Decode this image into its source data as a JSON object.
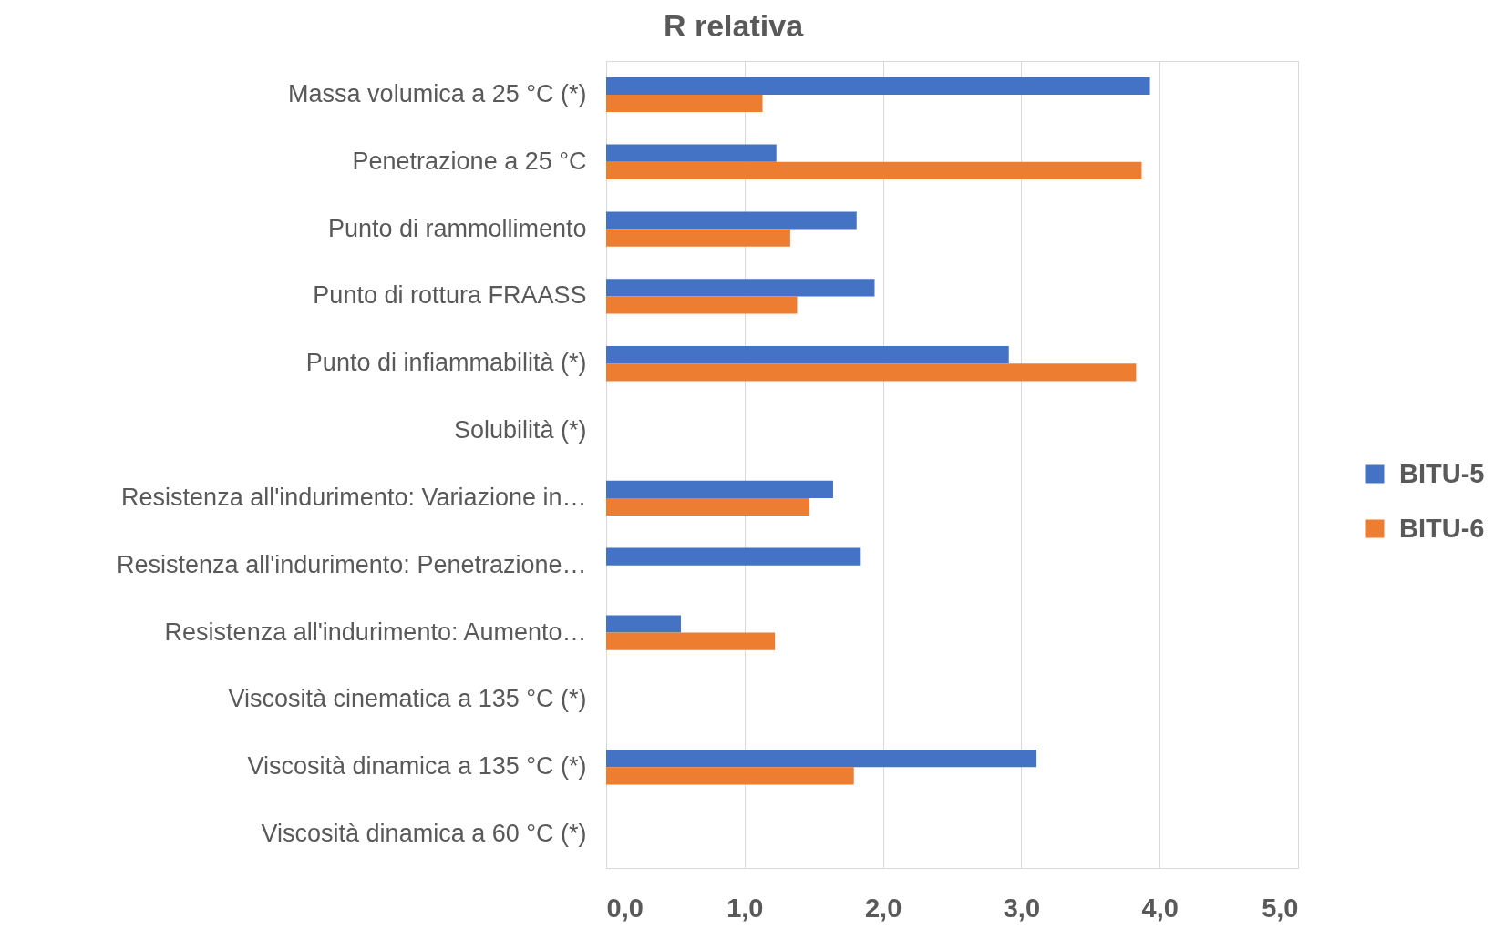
{
  "chart_data": {
    "type": "bar",
    "orientation": "horizontal",
    "title": "R relativa",
    "categories": [
      "Massa volumica a 25 °C  (*)",
      "Penetrazione a 25 °C",
      "Punto di rammollimento",
      "Punto di rottura FRAASS",
      "Punto di infiammabilità (*)",
      "Solubilità (*)",
      "Resistenza all'indurimento: Variazione in…",
      "Resistenza all'indurimento: Penetrazione…",
      "Resistenza all'indurimento: Aumento…",
      "Viscosità cinematica a 135 °C (*)",
      "Viscosità dinamica a 135 °C (*)",
      "Viscosità dinamica a 60 °C (*)"
    ],
    "series": [
      {
        "name": "BITU-5",
        "color": "#4472c4",
        "values": [
          3.93,
          1.23,
          1.81,
          1.94,
          2.91,
          null,
          1.64,
          1.84,
          0.54,
          null,
          3.11,
          null
        ]
      },
      {
        "name": "BITU-6",
        "color": "#ed7d31",
        "values": [
          1.13,
          3.87,
          1.33,
          1.38,
          3.83,
          null,
          1.47,
          null,
          1.22,
          null,
          1.79,
          null
        ]
      }
    ],
    "xlim": [
      0,
      5
    ],
    "xticks": [
      {
        "value": 0,
        "label": "0,0"
      },
      {
        "value": 1,
        "label": "1,0"
      },
      {
        "value": 2,
        "label": "2,0"
      },
      {
        "value": 3,
        "label": "3,0"
      },
      {
        "value": 4,
        "label": "4,0"
      },
      {
        "value": 5,
        "label": "5,0"
      }
    ],
    "grid": "x",
    "legend": "right"
  }
}
